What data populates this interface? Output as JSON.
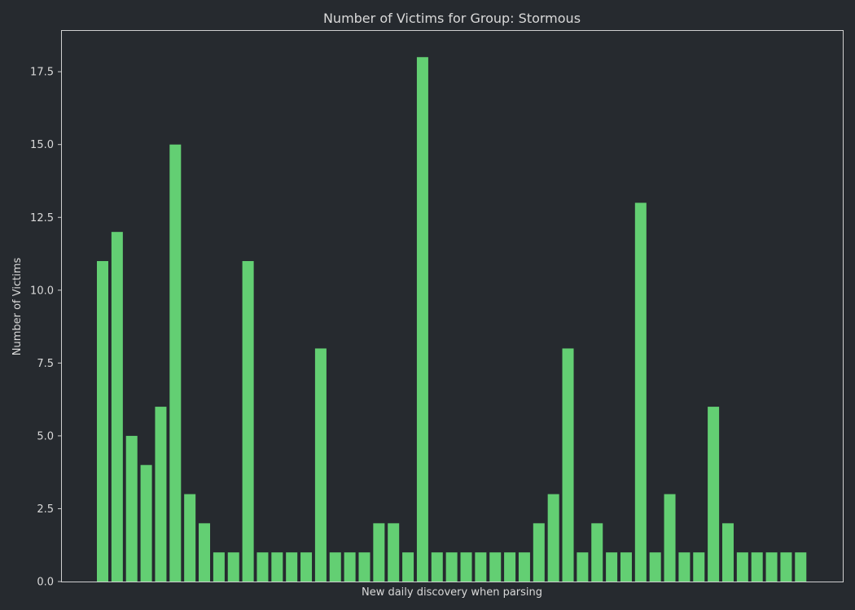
{
  "colors": {
    "background": "#262a2f",
    "bar": "#63cf73",
    "text": "#d9d9d9",
    "frame": "#d0d0d0"
  },
  "chart_data": {
    "type": "bar",
    "title": "Number of Victims for Group: Stormous",
    "xlabel": "New daily discovery when parsing",
    "ylabel": "Number of Victims",
    "ylim": [
      0,
      18.9
    ],
    "yticks": [
      "0.0",
      "2.5",
      "5.0",
      "7.5",
      "10.0",
      "12.5",
      "15.0",
      "17.5"
    ],
    "grid": false,
    "legend": "none",
    "values": [
      11,
      12,
      5,
      4,
      6,
      15,
      3,
      2,
      1,
      1,
      11,
      1,
      1,
      1,
      1,
      8,
      1,
      1,
      1,
      2,
      2,
      1,
      18,
      1,
      1,
      1,
      1,
      1,
      1,
      1,
      2,
      3,
      8,
      1,
      2,
      1,
      1,
      13,
      1,
      3,
      1,
      1,
      6,
      2,
      1,
      1,
      1,
      1,
      1
    ]
  }
}
